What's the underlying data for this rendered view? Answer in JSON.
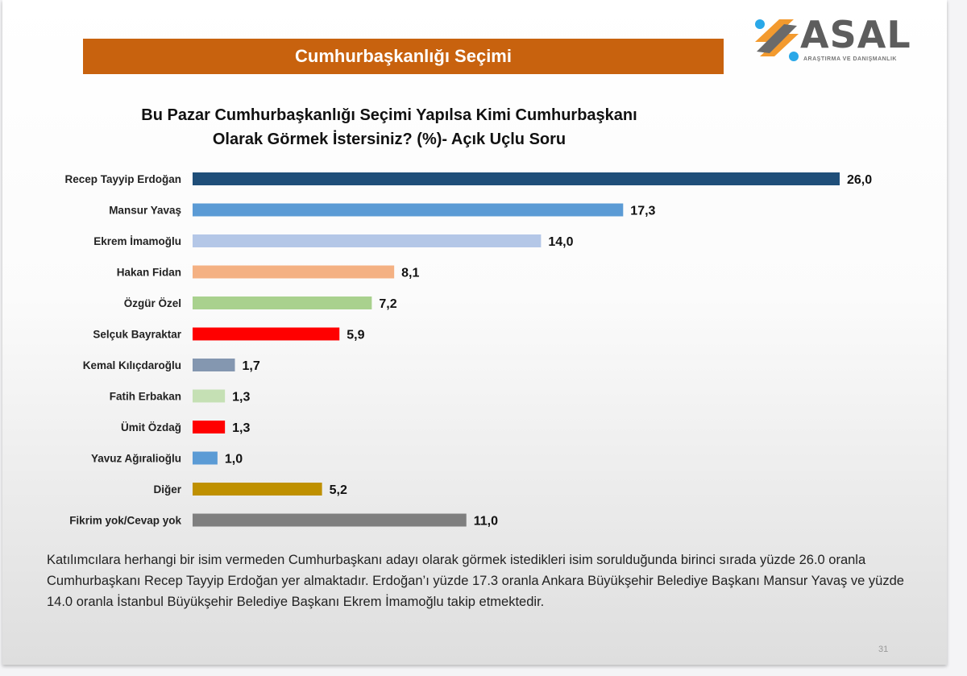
{
  "header": {
    "banner": "Cumhurbaşkanlığı Seçimi"
  },
  "logo": {
    "name": "ASAL",
    "tagline": "ARAŞTIRMA VE DANIŞMANLIK",
    "colors": {
      "gray": "#5d5d5d",
      "orange": "#f39a2e",
      "blue": "#2aa8e8"
    }
  },
  "chart_data": {
    "type": "bar",
    "orientation": "horizontal",
    "title": "Bu Pazar Cumhurbaşkanlığı Seçimi Yapılsa Kimi Cumhurbaşkanı Olarak Görmek İstersiniz? (%)- Açık Uçlu Soru",
    "title_lines": [
      "Bu Pazar Cumhurbaşkanlığı Seçimi Yapılsa Kimi Cumhurbaşkanı",
      "Olarak Görmek İstersiniz? (%)- Açık Uçlu Soru"
    ],
    "categories": [
      "Recep Tayyip Erdoğan",
      "Mansur Yavaş",
      "Ekrem İmamoğlu",
      "Hakan Fidan",
      "Özgür Özel",
      "Selçuk Bayraktar",
      "Kemal Kılıçdaroğlu",
      "Fatih Erbakan",
      "Ümit Özdağ",
      "Yavuz Ağıralioğlu",
      "Diğer",
      "Fikrim yok/Cevap yok"
    ],
    "values": [
      26.0,
      17.3,
      14.0,
      8.1,
      7.2,
      5.9,
      1.7,
      1.3,
      1.3,
      1.0,
      5.2,
      11.0
    ],
    "labels": [
      "26,0",
      "17,3",
      "14,0",
      "8,1",
      "7,2",
      "5,9",
      "1,7",
      "1,3",
      "1,3",
      "1,0",
      "5,2",
      "11,0"
    ],
    "colors": [
      "#1f4e79",
      "#5b9bd5",
      "#b4c7e7",
      "#f4b183",
      "#a9d18e",
      "#ff0000",
      "#8497b0",
      "#c5e0b4",
      "#ff0000",
      "#5b9bd5",
      "#bf9000",
      "#7f7f7f"
    ],
    "xlabel": "",
    "ylabel": "",
    "grid": false,
    "legend": "none"
  },
  "note": "Katılımcılara herhangi bir isim vermeden Cumhurbaşkanı adayı olarak görmek istedikleri isim sorulduğunda birinci sırada yüzde 26.0 oranla Cumhurbaşkanı Recep Tayyip Erdoğan yer almaktadır. Erdoğan’ı yüzde 17.3 oranla Ankara Büyükşehir Belediye Başkanı Mansur Yavaş ve yüzde 14.0 oranla İstanbul Büyükşehir Belediye Başkanı Ekrem İmamoğlu takip etmektedir.",
  "page_number": "31"
}
